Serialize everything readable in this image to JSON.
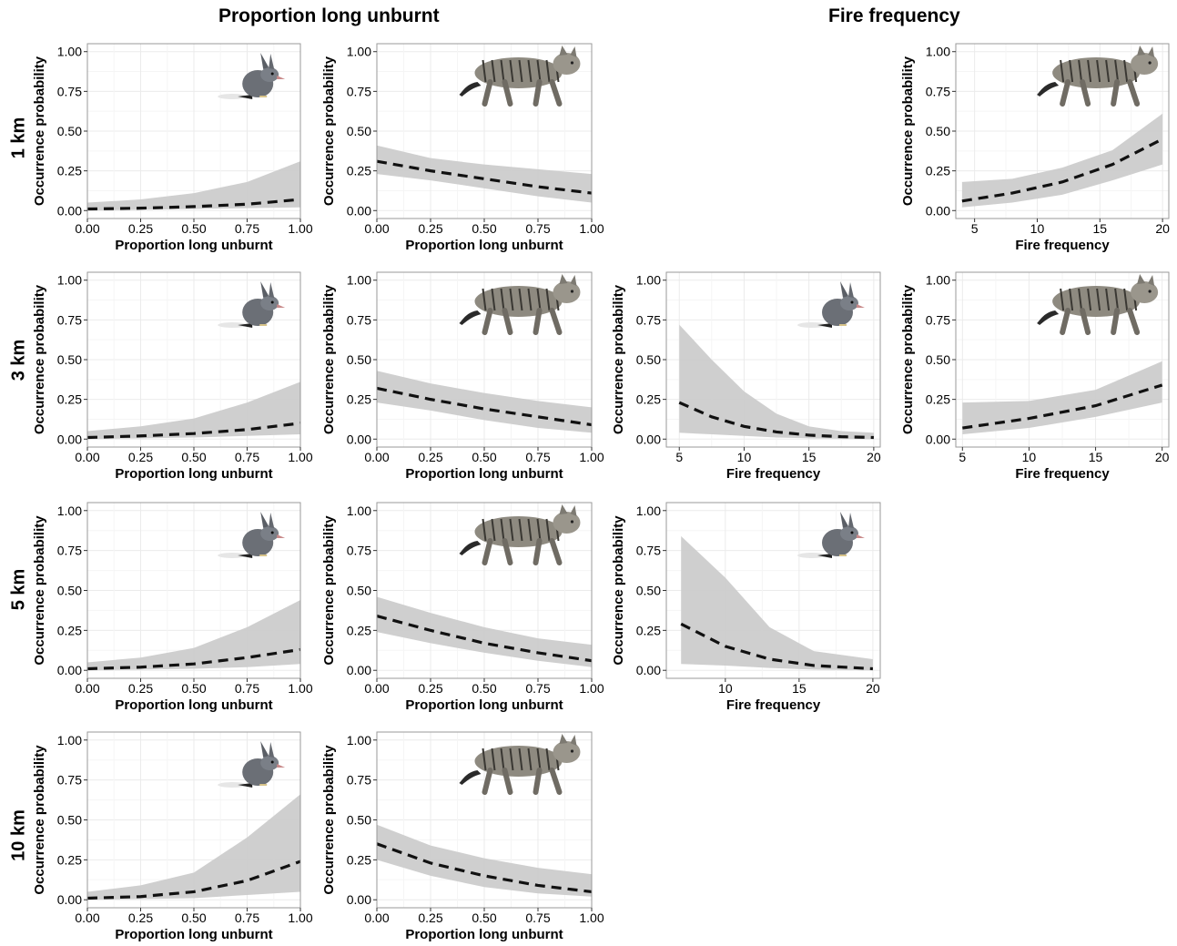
{
  "column_titles": [
    "Proportion long unburnt",
    "Fire frequency"
  ],
  "row_labels": [
    "1 km",
    "3 km",
    "5 km",
    "10 km"
  ],
  "colors": {
    "band": "#cccccc",
    "line": "#111111",
    "grid": "#ebebeb",
    "frame": "#333333"
  },
  "chart_data": [
    {
      "type": "line",
      "row": "1 km",
      "species_icon": "bandicoot-icon",
      "xlabel": "Proportion long unburnt",
      "ylabel": "Occurrence probability",
      "xlim": [
        0,
        1
      ],
      "ylim": [
        0,
        1
      ],
      "xticks": [
        0,
        0.25,
        0.5,
        0.75,
        1
      ],
      "xtick_labels": [
        "0.00",
        "0.25",
        "0.50",
        "0.75",
        "1.00"
      ],
      "yticks": [
        0,
        0.25,
        0.5,
        0.75,
        1
      ],
      "ytick_labels": [
        "0.00",
        "0.25",
        "0.50",
        "0.75",
        "1.00"
      ],
      "x": [
        0,
        0.25,
        0.5,
        0.75,
        1
      ],
      "y": [
        0.01,
        0.015,
        0.025,
        0.04,
        0.07
      ],
      "lower": [
        0.0,
        0.005,
        0.01,
        0.015,
        0.02
      ],
      "upper": [
        0.05,
        0.07,
        0.11,
        0.18,
        0.31
      ]
    },
    {
      "type": "line",
      "row": "1 km",
      "species_icon": "cat-icon",
      "xlabel": "Proportion long unburnt",
      "ylabel": "Occurrence probability",
      "xlim": [
        0,
        1
      ],
      "ylim": [
        0,
        1
      ],
      "xticks": [
        0,
        0.25,
        0.5,
        0.75,
        1
      ],
      "xtick_labels": [
        "0.00",
        "0.25",
        "0.50",
        "0.75",
        "1.00"
      ],
      "yticks": [
        0,
        0.25,
        0.5,
        0.75,
        1
      ],
      "ytick_labels": [
        "0.00",
        "0.25",
        "0.50",
        "0.75",
        "1.00"
      ],
      "x": [
        0,
        0.25,
        0.5,
        0.75,
        1
      ],
      "y": [
        0.31,
        0.25,
        0.2,
        0.15,
        0.11
      ],
      "lower": [
        0.23,
        0.19,
        0.14,
        0.09,
        0.05
      ],
      "upper": [
        0.41,
        0.33,
        0.29,
        0.26,
        0.23
      ]
    },
    {
      "type": "line",
      "row": "1 km",
      "species_icon": "cat-icon",
      "xlabel": "Fire frequency",
      "ylabel": "Occurrence probability",
      "xlim": [
        3.5,
        20.5
      ],
      "ylim": [
        0,
        1
      ],
      "xticks": [
        5,
        10,
        15,
        20
      ],
      "xtick_labels": [
        "5",
        "10",
        "15",
        "20"
      ],
      "yticks": [
        0,
        0.25,
        0.5,
        0.75,
        1
      ],
      "ytick_labels": [
        "0.00",
        "0.25",
        "0.50",
        "0.75",
        "1.00"
      ],
      "x": [
        4,
        8,
        12,
        16,
        20
      ],
      "y": [
        0.06,
        0.11,
        0.18,
        0.29,
        0.45
      ],
      "lower": [
        0.02,
        0.05,
        0.1,
        0.19,
        0.29
      ],
      "upper": [
        0.18,
        0.2,
        0.27,
        0.38,
        0.61
      ]
    },
    {
      "type": "line",
      "row": "3 km",
      "species_icon": "bandicoot-icon",
      "xlabel": "Proportion long unburnt",
      "ylabel": "Occurrence probability",
      "xlim": [
        0,
        1
      ],
      "ylim": [
        0,
        1
      ],
      "xticks": [
        0,
        0.25,
        0.5,
        0.75,
        1
      ],
      "xtick_labels": [
        "0.00",
        "0.25",
        "0.50",
        "0.75",
        "1.00"
      ],
      "yticks": [
        0,
        0.25,
        0.5,
        0.75,
        1
      ],
      "ytick_labels": [
        "0.00",
        "0.25",
        "0.50",
        "0.75",
        "1.00"
      ],
      "x": [
        0,
        0.25,
        0.5,
        0.75,
        1
      ],
      "y": [
        0.01,
        0.02,
        0.035,
        0.06,
        0.1
      ],
      "lower": [
        0.0,
        0.005,
        0.01,
        0.02,
        0.03
      ],
      "upper": [
        0.05,
        0.08,
        0.13,
        0.23,
        0.36
      ]
    },
    {
      "type": "line",
      "row": "3 km",
      "species_icon": "cat-icon",
      "xlabel": "Proportion long unburnt",
      "ylabel": "Occurrence probability",
      "xlim": [
        0,
        1
      ],
      "ylim": [
        0,
        1
      ],
      "xticks": [
        0,
        0.25,
        0.5,
        0.75,
        1
      ],
      "xtick_labels": [
        "0.00",
        "0.25",
        "0.50",
        "0.75",
        "1.00"
      ],
      "yticks": [
        0,
        0.25,
        0.5,
        0.75,
        1
      ],
      "ytick_labels": [
        "0.00",
        "0.25",
        "0.50",
        "0.75",
        "1.00"
      ],
      "x": [
        0,
        0.25,
        0.5,
        0.75,
        1
      ],
      "y": [
        0.32,
        0.25,
        0.19,
        0.14,
        0.09
      ],
      "lower": [
        0.23,
        0.18,
        0.12,
        0.07,
        0.04
      ],
      "upper": [
        0.43,
        0.35,
        0.29,
        0.24,
        0.2
      ]
    },
    {
      "type": "line",
      "row": "3 km",
      "species_icon": "bandicoot-icon",
      "xlabel": "Fire frequency",
      "ylabel": "Occurrence probability",
      "xlim": [
        4,
        20.5
      ],
      "ylim": [
        0,
        1
      ],
      "xticks": [
        5,
        10,
        15,
        20
      ],
      "xtick_labels": [
        "5",
        "10",
        "15",
        "20"
      ],
      "yticks": [
        0,
        0.25,
        0.5,
        0.75,
        1
      ],
      "ytick_labels": [
        "0.00",
        "0.25",
        "0.50",
        "0.75",
        "1.00"
      ],
      "x": [
        5,
        7.5,
        10,
        12.5,
        15,
        17.5,
        20
      ],
      "y": [
        0.23,
        0.14,
        0.08,
        0.045,
        0.025,
        0.015,
        0.01
      ],
      "lower": [
        0.04,
        0.03,
        0.02,
        0.01,
        0.005,
        0.002,
        0.0
      ],
      "upper": [
        0.72,
        0.5,
        0.3,
        0.16,
        0.08,
        0.05,
        0.04
      ]
    },
    {
      "type": "line",
      "row": "3 km",
      "species_icon": "cat-icon",
      "xlabel": "Fire frequency",
      "ylabel": "Occurrence probability",
      "xlim": [
        4.5,
        20.5
      ],
      "ylim": [
        0,
        1
      ],
      "xticks": [
        5,
        10,
        15,
        20
      ],
      "xtick_labels": [
        "5",
        "10",
        "15",
        "20"
      ],
      "yticks": [
        0,
        0.25,
        0.5,
        0.75,
        1
      ],
      "ytick_labels": [
        "0.00",
        "0.25",
        "0.50",
        "0.75",
        "1.00"
      ],
      "x": [
        5,
        10,
        15,
        20
      ],
      "y": [
        0.07,
        0.13,
        0.21,
        0.34
      ],
      "lower": [
        0.03,
        0.07,
        0.14,
        0.23
      ],
      "upper": [
        0.23,
        0.24,
        0.31,
        0.49
      ]
    },
    {
      "type": "line",
      "row": "5 km",
      "species_icon": "bandicoot-icon",
      "xlabel": "Proportion long unburnt",
      "ylabel": "Occurrence probability",
      "xlim": [
        0,
        1
      ],
      "ylim": [
        0,
        1
      ],
      "xticks": [
        0,
        0.25,
        0.5,
        0.75,
        1
      ],
      "xtick_labels": [
        "0.00",
        "0.25",
        "0.50",
        "0.75",
        "1.00"
      ],
      "yticks": [
        0,
        0.25,
        0.5,
        0.75,
        1
      ],
      "ytick_labels": [
        "0.00",
        "0.25",
        "0.50",
        "0.75",
        "1.00"
      ],
      "x": [
        0,
        0.25,
        0.5,
        0.75,
        1
      ],
      "y": [
        0.01,
        0.02,
        0.04,
        0.08,
        0.13
      ],
      "lower": [
        0.0,
        0.005,
        0.01,
        0.02,
        0.04
      ],
      "upper": [
        0.05,
        0.08,
        0.14,
        0.27,
        0.44
      ]
    },
    {
      "type": "line",
      "row": "5 km",
      "species_icon": "cat-icon",
      "xlabel": "Proportion long unburnt",
      "ylabel": "Occurrence probability",
      "xlim": [
        0,
        1
      ],
      "ylim": [
        0,
        1
      ],
      "xticks": [
        0,
        0.25,
        0.5,
        0.75,
        1
      ],
      "xtick_labels": [
        "0.00",
        "0.25",
        "0.50",
        "0.75",
        "1.00"
      ],
      "yticks": [
        0,
        0.25,
        0.5,
        0.75,
        1
      ],
      "ytick_labels": [
        "0.00",
        "0.25",
        "0.50",
        "0.75",
        "1.00"
      ],
      "x": [
        0,
        0.25,
        0.5,
        0.75,
        1
      ],
      "y": [
        0.34,
        0.25,
        0.17,
        0.11,
        0.06
      ],
      "lower": [
        0.24,
        0.17,
        0.11,
        0.06,
        0.02
      ],
      "upper": [
        0.46,
        0.36,
        0.27,
        0.2,
        0.16
      ]
    },
    {
      "type": "line",
      "row": "5 km",
      "species_icon": "bandicoot-icon",
      "xlabel": "Fire frequency",
      "ylabel": "Occurrence probability",
      "xlim": [
        6,
        20.5
      ],
      "ylim": [
        0,
        1
      ],
      "xticks": [
        10,
        15,
        20
      ],
      "xtick_labels": [
        "10",
        "15",
        "20"
      ],
      "yticks": [
        0,
        0.25,
        0.5,
        0.75,
        1
      ],
      "ytick_labels": [
        "0.00",
        "0.25",
        "0.50",
        "0.75",
        "1.00"
      ],
      "x": [
        7,
        10,
        13,
        16,
        20
      ],
      "y": [
        0.29,
        0.15,
        0.07,
        0.03,
        0.01
      ],
      "lower": [
        0.04,
        0.03,
        0.015,
        0.005,
        0.0
      ],
      "upper": [
        0.84,
        0.58,
        0.27,
        0.12,
        0.07
      ]
    },
    {
      "type": "line",
      "row": "10 km",
      "species_icon": "bandicoot-icon",
      "xlabel": "Proportion long unburnt",
      "ylabel": "Occurrence probability",
      "xlim": [
        0,
        1
      ],
      "ylim": [
        0,
        1
      ],
      "xticks": [
        0,
        0.25,
        0.5,
        0.75,
        1
      ],
      "xtick_labels": [
        "0.00",
        "0.25",
        "0.50",
        "0.75",
        "1.00"
      ],
      "yticks": [
        0,
        0.25,
        0.5,
        0.75,
        1
      ],
      "ytick_labels": [
        "0.00",
        "0.25",
        "0.50",
        "0.75",
        "1.00"
      ],
      "x": [
        0,
        0.25,
        0.5,
        0.75,
        1
      ],
      "y": [
        0.01,
        0.02,
        0.05,
        0.12,
        0.24
      ],
      "lower": [
        0.0,
        0.005,
        0.01,
        0.03,
        0.05
      ],
      "upper": [
        0.05,
        0.09,
        0.17,
        0.39,
        0.66
      ]
    },
    {
      "type": "line",
      "row": "10 km",
      "species_icon": "cat-icon",
      "xlabel": "Proportion long unburnt",
      "ylabel": "Occurrence probability",
      "xlim": [
        0,
        1
      ],
      "ylim": [
        0,
        1
      ],
      "xticks": [
        0,
        0.25,
        0.5,
        0.75,
        1
      ],
      "xtick_labels": [
        "0.00",
        "0.25",
        "0.50",
        "0.75",
        "1.00"
      ],
      "yticks": [
        0,
        0.25,
        0.5,
        0.75,
        1
      ],
      "ytick_labels": [
        "0.00",
        "0.25",
        "0.50",
        "0.75",
        "1.00"
      ],
      "x": [
        0,
        0.25,
        0.5,
        0.75,
        1
      ],
      "y": [
        0.35,
        0.23,
        0.15,
        0.09,
        0.05
      ],
      "lower": [
        0.25,
        0.15,
        0.08,
        0.04,
        0.02
      ],
      "upper": [
        0.47,
        0.34,
        0.26,
        0.2,
        0.16
      ]
    }
  ]
}
